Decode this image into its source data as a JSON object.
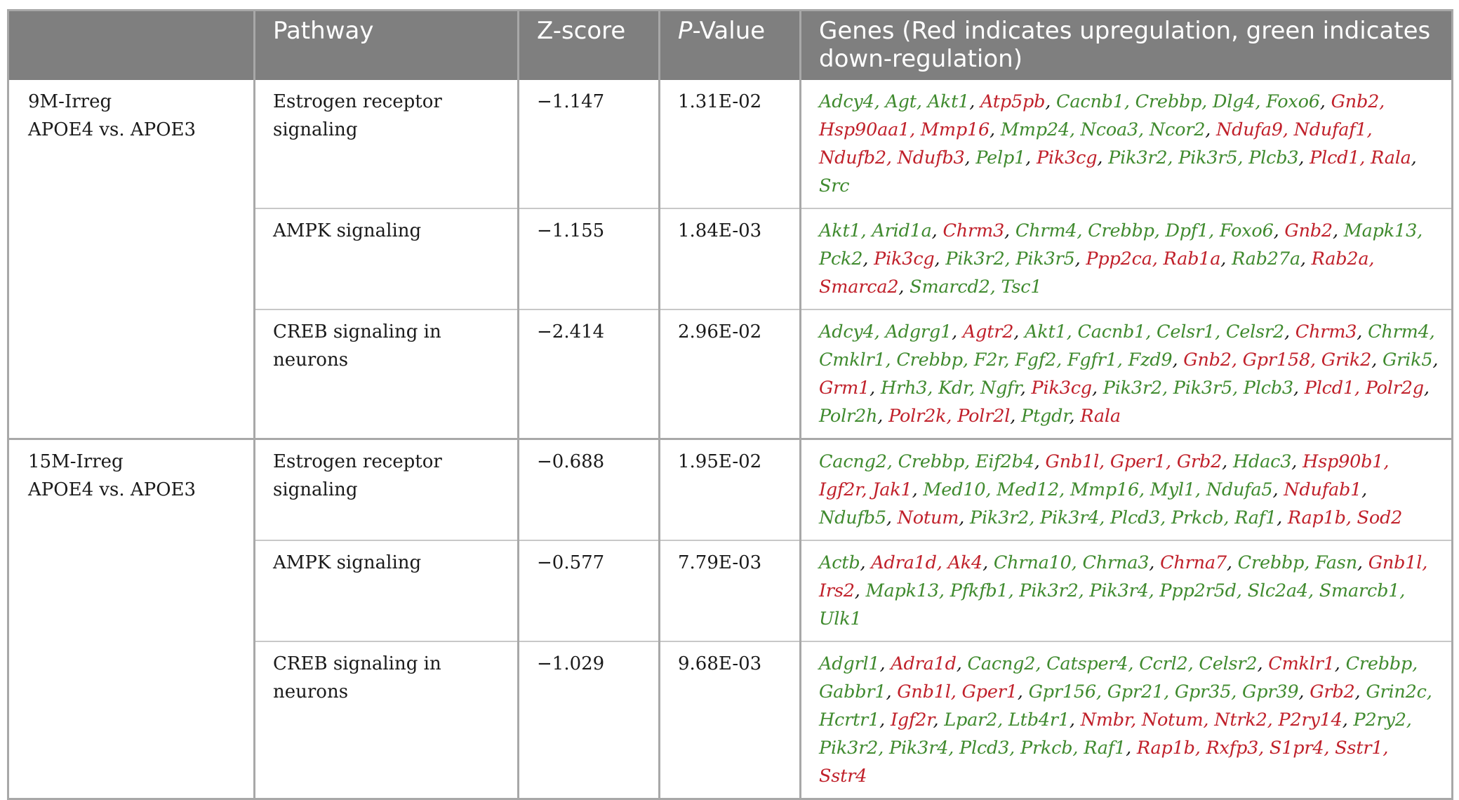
{
  "header": {
    "col1": "",
    "col2": "Pathway",
    "col3": "Z-score",
    "col4_italic": "P",
    "col4_rest": "-Value",
    "col5": "Genes (Red indicates upregulation, green indicates down-regulation)"
  },
  "groups": [
    {
      "label_line1": "9M-Irreg",
      "label_line2": "APOE4 vs. APOE3",
      "rows": [
        {
          "pathway": "Estrogen receptor signaling",
          "zscore": "−1.147",
          "pvalue": "1.31E-02",
          "genes": [
            {
              "t": "Adcy4, Agt, Akt1",
              "c": "down"
            },
            {
              "t": "Atp5pb",
              "c": "up"
            },
            {
              "t": "Cacnb1, Crebbp, Dlg4, Foxo6",
              "c": "down"
            },
            {
              "t": "Gnb2, Hsp90aa1, Mmp16",
              "c": "up"
            },
            {
              "t": "Mmp24, Ncoa3, Ncor2",
              "c": "down"
            },
            {
              "t": "Ndufa9, Ndufaf1, Ndufb2, Ndufb3",
              "c": "up"
            },
            {
              "t": "Pelp1",
              "c": "down"
            },
            {
              "t": "Pik3cg",
              "c": "up"
            },
            {
              "t": "Pik3r2, Pik3r5, Plcb3",
              "c": "down"
            },
            {
              "t": "Plcd1, Rala",
              "c": "up"
            },
            {
              "t": "Src",
              "c": "down"
            }
          ]
        },
        {
          "pathway": "AMPK signaling",
          "zscore": "−1.155",
          "pvalue": "1.84E-03",
          "genes": [
            {
              "t": "Akt1, Arid1a",
              "c": "down"
            },
            {
              "t": "Chrm3",
              "c": "up"
            },
            {
              "t": "Chrm4, Crebbp, Dpf1, Foxo6",
              "c": "down"
            },
            {
              "t": "Gnb2",
              "c": "up"
            },
            {
              "t": "Mapk13, Pck2",
              "c": "down"
            },
            {
              "t": "Pik3cg",
              "c": "up"
            },
            {
              "t": "Pik3r2, Pik3r5",
              "c": "down"
            },
            {
              "t": "Ppp2ca, Rab1a",
              "c": "up"
            },
            {
              "t": "Rab27a",
              "c": "down"
            },
            {
              "t": "Rab2a, Smarca2",
              "c": "up"
            },
            {
              "t": "Smarcd2, Tsc1",
              "c": "down"
            }
          ]
        },
        {
          "pathway": "CREB signaling in neurons",
          "zscore": "−2.414",
          "pvalue": "2.96E-02",
          "genes": [
            {
              "t": "Adcy4, Adgrg1",
              "c": "down"
            },
            {
              "t": "Agtr2",
              "c": "up"
            },
            {
              "t": "Akt1, Cacnb1, Celsr1, Celsr2",
              "c": "down"
            },
            {
              "t": "Chrm3",
              "c": "up"
            },
            {
              "t": "Chrm4, Cmklr1, Crebbp, F2r, Fgf2, Fgfr1, Fzd9",
              "c": "down"
            },
            {
              "t": "Gnb2, Gpr158, Grik2",
              "c": "up"
            },
            {
              "t": "Grik5",
              "c": "down"
            },
            {
              "t": "Grm1",
              "c": "up"
            },
            {
              "t": "Hrh3, Kdr, Ngfr",
              "c": "down"
            },
            {
              "t": "Pik3cg",
              "c": "up"
            },
            {
              "t": "Pik3r2, Pik3r5, Plcb3",
              "c": "down"
            },
            {
              "t": "Plcd1, Polr2g",
              "c": "up"
            },
            {
              "t": "Polr2h",
              "c": "down"
            },
            {
              "t": "Polr2k, Polr2l",
              "c": "up"
            },
            {
              "t": "Ptgdr",
              "c": "down"
            },
            {
              "t": "Rala",
              "c": "up"
            }
          ]
        }
      ]
    },
    {
      "label_line1": "15M-Irreg",
      "label_line2": "APOE4 vs. APOE3",
      "rows": [
        {
          "pathway": "Estrogen receptor signaling",
          "zscore": "−0.688",
          "pvalue": "1.95E-02",
          "genes": [
            {
              "t": "Cacng2, Crebbp, Eif2b4",
              "c": "down"
            },
            {
              "t": "Gnb1l, Gper1, Grb2",
              "c": "up"
            },
            {
              "t": "Hdac3",
              "c": "down"
            },
            {
              "t": "Hsp90b1, Igf2r, Jak1",
              "c": "up"
            },
            {
              "t": "Med10, Med12, Mmp16, Myl1, Ndufa5",
              "c": "down"
            },
            {
              "t": "Ndufab1",
              "c": "up"
            },
            {
              "t": "Ndufb5",
              "c": "down"
            },
            {
              "t": "Notum",
              "c": "up"
            },
            {
              "t": "Pik3r2, Pik3r4, Plcd3, Prkcb, Raf1",
              "c": "down"
            },
            {
              "t": "Rap1b, Sod2",
              "c": "up"
            }
          ]
        },
        {
          "pathway": "AMPK signaling",
          "zscore": "−0.577",
          "pvalue": "7.79E-03",
          "genes": [
            {
              "t": "Actb",
              "c": "down"
            },
            {
              "t": "Adra1d, Ak4",
              "c": "up"
            },
            {
              "t": "Chrna10, Chrna3",
              "c": "down"
            },
            {
              "t": "Chrna7",
              "c": "up"
            },
            {
              "t": "Crebbp, Fasn",
              "c": "down"
            },
            {
              "t": "Gnb1l, Irs2",
              "c": "up"
            },
            {
              "t": "Mapk13, Pfkfb1, Pik3r2, Pik3r4, Ppp2r5d, Slc2a4, Smarcb1, Ulk1",
              "c": "down"
            }
          ]
        },
        {
          "pathway": "CREB signaling in neurons",
          "zscore": "−1.029",
          "pvalue": "9.68E-03",
          "genes": [
            {
              "t": "Adgrl1",
              "c": "down"
            },
            {
              "t": "Adra1d",
              "c": "up"
            },
            {
              "t": "Cacng2, Catsper4, Ccrl2, Celsr2",
              "c": "down"
            },
            {
              "t": "Cmklr1",
              "c": "up"
            },
            {
              "t": "Crebbp, Gabbr1",
              "c": "down"
            },
            {
              "t": "Gnb1l, Gper1",
              "c": "up"
            },
            {
              "t": "Gpr156, Gpr21, Gpr35, Gpr39",
              "c": "down"
            },
            {
              "t": "Grb2",
              "c": "up"
            },
            {
              "t": "Grin2c, Hcrtr1",
              "c": "down"
            },
            {
              "t": "Igf2r",
              "c": "up"
            },
            {
              "t": "Lpar2, Ltb4r1",
              "c": "down"
            },
            {
              "t": "Nmbr, Notum, Ntrk2, P2ry14",
              "c": "up"
            },
            {
              "t": "P2ry2, Pik3r2, Pik3r4, Plcd3, Prkcb, Raf1",
              "c": "down"
            },
            {
              "t": "Rap1b, Rxfp3, S1pr4, Sstr1, Sstr4",
              "c": "up"
            }
          ]
        }
      ]
    }
  ]
}
